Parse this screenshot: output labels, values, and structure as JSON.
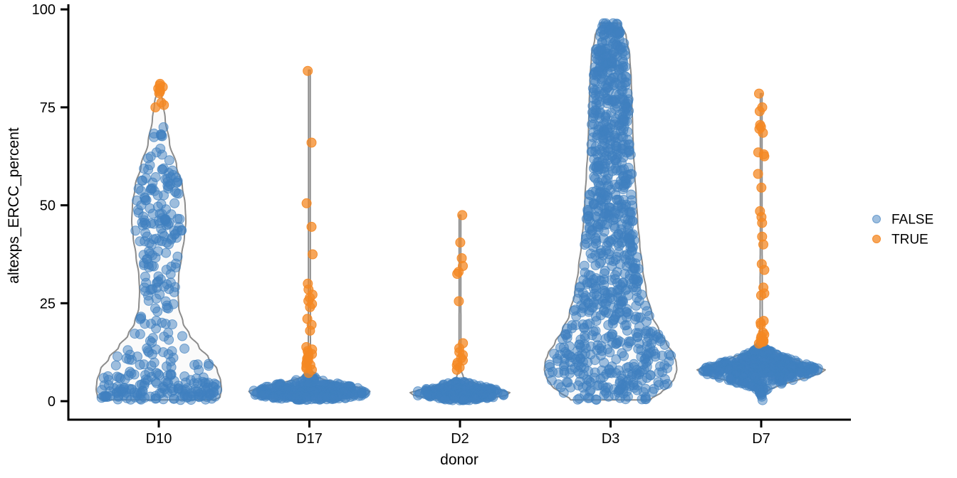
{
  "chart_data": {
    "type": "violin+jitter-scatter",
    "title": "",
    "xlabel": "donor",
    "ylabel": "altexps_ERCC_percent",
    "ylim": [
      0,
      100
    ],
    "y_ticks": [
      0,
      25,
      50,
      75,
      100
    ],
    "categories": [
      "D10",
      "D17",
      "D2",
      "D3",
      "D7"
    ],
    "grid": "off",
    "legend": {
      "position": "right-center",
      "entries": [
        {
          "label": "FALSE",
          "color": "#4080BF",
          "fill_opacity": 0.5
        },
        {
          "label": "TRUE",
          "color": "#F48823",
          "fill_opacity": 0.75
        }
      ]
    },
    "style": {
      "background": "#FFFFFF",
      "violin_fill": "#FAFAFA",
      "violin_stroke": "#8C8C8C",
      "violin_stroke_width": 2,
      "axis_color": "#000000",
      "axis_line_width": 3,
      "point_radius": 6.5,
      "false_color": "#4080BF",
      "false_fill_opacity": 0.5,
      "false_stroke_opacity": 0.68,
      "true_color": "#F48823",
      "true_fill_opacity": 0.75,
      "true_stroke_opacity": 0.92
    },
    "violins": [
      {
        "donor": "D10",
        "flat_bottom": true,
        "outline_profile": [
          [
            79,
            3
          ],
          [
            76,
            6
          ],
          [
            72,
            9
          ],
          [
            66,
            15
          ],
          [
            60,
            25
          ],
          [
            55,
            33
          ],
          [
            50,
            37
          ],
          [
            46,
            38
          ],
          [
            42,
            36
          ],
          [
            37,
            32
          ],
          [
            32,
            28
          ],
          [
            28,
            27
          ],
          [
            24,
            28
          ],
          [
            20,
            34
          ],
          [
            17,
            43
          ],
          [
            14,
            56
          ],
          [
            11,
            70
          ],
          [
            8,
            82
          ],
          [
            5,
            87
          ],
          [
            3,
            88
          ],
          [
            1,
            86
          ],
          [
            0.3,
            78
          ]
        ],
        "true_values": [
          81,
          80.6,
          80.2,
          79.8,
          79.4,
          79,
          78.6,
          76.2,
          75.6,
          75
        ],
        "true_jitter": 8,
        "false_clusters": [
          {
            "n": 14,
            "min": 60,
            "max": 71
          },
          {
            "n": 45,
            "min": 50,
            "max": 60
          },
          {
            "n": 55,
            "min": 40,
            "max": 50
          },
          {
            "n": 30,
            "min": 30,
            "max": 40
          },
          {
            "n": 22,
            "min": 22,
            "max": 30
          },
          {
            "n": 18,
            "min": 15,
            "max": 22
          },
          {
            "n": 30,
            "min": 8,
            "max": 15
          },
          {
            "n": 55,
            "min": 3.5,
            "max": 8
          },
          {
            "n": 95,
            "min": 0.3,
            "max": 3.5
          }
        ]
      },
      {
        "donor": "D17",
        "flat_bottom": true,
        "outline_profile": [
          [
            84.5,
            1.2
          ],
          [
            60,
            1.2
          ],
          [
            30,
            1.3
          ],
          [
            10,
            1.5
          ],
          [
            8,
            3
          ],
          [
            6.5,
            8
          ],
          [
            5.5,
            20
          ],
          [
            4.5,
            45
          ],
          [
            3.5,
            70
          ],
          [
            2.5,
            85
          ],
          [
            1.5,
            80
          ],
          [
            0.8,
            55
          ],
          [
            0.3,
            25
          ]
        ],
        "true_values": [
          84.3,
          66,
          50.5,
          44.5,
          37.5,
          30,
          28.5,
          27.2,
          26.4,
          25.6,
          24.8,
          24,
          21,
          19.5,
          18,
          13.8,
          13.2,
          12.8,
          12.4,
          12,
          11.6,
          11.2,
          10.8,
          10.4,
          10,
          9.6,
          9.2,
          8.8,
          8.4,
          8,
          7.2
        ],
        "true_jitter": 4.5,
        "false_clusters": [
          {
            "n": 25,
            "min": 4.5,
            "max": 6.5
          },
          {
            "n": 90,
            "min": 3,
            "max": 4.5
          },
          {
            "n": 130,
            "min": 1.5,
            "max": 3
          },
          {
            "n": 85,
            "min": 0.3,
            "max": 1.5
          }
        ]
      },
      {
        "donor": "D2",
        "flat_bottom": true,
        "outline_profile": [
          [
            47.5,
            1.2
          ],
          [
            30,
            1.2
          ],
          [
            15,
            1.3
          ],
          [
            8,
            1.5
          ],
          [
            6,
            5
          ],
          [
            5,
            14
          ],
          [
            4,
            32
          ],
          [
            3,
            55
          ],
          [
            2.2,
            70
          ],
          [
            1.5,
            65
          ],
          [
            0.8,
            45
          ],
          [
            0.3,
            18
          ]
        ],
        "true_values": [
          47.5,
          40.5,
          36.5,
          34.5,
          33,
          32.5,
          25.5,
          14.8,
          13.5,
          12.5,
          11.8,
          11,
          10.4,
          9.8,
          9.2,
          8.6,
          8
        ],
        "true_jitter": 4.5,
        "false_clusters": [
          {
            "n": 30,
            "min": 3.5,
            "max": 5
          },
          {
            "n": 90,
            "min": 2,
            "max": 3.5
          },
          {
            "n": 85,
            "min": 0.8,
            "max": 2
          },
          {
            "n": 25,
            "min": 0.2,
            "max": 0.8
          }
        ]
      },
      {
        "donor": "D3",
        "flat_bottom": true,
        "outline_profile": [
          [
            96.5,
            14
          ],
          [
            93,
            22
          ],
          [
            88,
            27
          ],
          [
            82,
            29
          ],
          [
            76,
            30
          ],
          [
            70,
            31
          ],
          [
            64,
            32
          ],
          [
            58,
            34
          ],
          [
            52,
            36
          ],
          [
            46,
            38
          ],
          [
            40,
            41
          ],
          [
            34,
            45
          ],
          [
            28,
            50
          ],
          [
            22,
            58
          ],
          [
            18,
            68
          ],
          [
            15,
            78
          ],
          [
            12,
            88
          ],
          [
            10,
            92
          ],
          [
            8,
            93
          ],
          [
            6,
            90
          ],
          [
            4,
            83
          ],
          [
            2,
            70
          ],
          [
            0.8,
            58
          ],
          [
            0.3,
            56
          ]
        ],
        "true_values": [],
        "true_jitter": 0,
        "false_clusters": [
          {
            "n": 70,
            "min": 88,
            "max": 96.5
          },
          {
            "n": 90,
            "min": 78,
            "max": 88
          },
          {
            "n": 90,
            "min": 68,
            "max": 78
          },
          {
            "n": 85,
            "min": 58,
            "max": 68
          },
          {
            "n": 85,
            "min": 48,
            "max": 58
          },
          {
            "n": 90,
            "min": 38,
            "max": 48
          },
          {
            "n": 85,
            "min": 28,
            "max": 38
          },
          {
            "n": 80,
            "min": 20,
            "max": 28
          },
          {
            "n": 80,
            "min": 13,
            "max": 20
          },
          {
            "n": 90,
            "min": 7,
            "max": 13
          },
          {
            "n": 60,
            "min": 2.5,
            "max": 7
          },
          {
            "n": 25,
            "min": 0.3,
            "max": 2.5
          }
        ]
      },
      {
        "donor": "D7",
        "flat_bottom": false,
        "outline_profile": [
          [
            78.5,
            1.2
          ],
          [
            50,
            1.2
          ],
          [
            25,
            1.5
          ],
          [
            16,
            2
          ],
          [
            14,
            6
          ],
          [
            12.5,
            20
          ],
          [
            11,
            42
          ],
          [
            10,
            58
          ],
          [
            9,
            75
          ],
          [
            8,
            90
          ],
          [
            7,
            82
          ],
          [
            6,
            63
          ],
          [
            5,
            44
          ],
          [
            4,
            26
          ],
          [
            3,
            12
          ],
          [
            2,
            5
          ],
          [
            1,
            1.5
          ]
        ],
        "true_values": [
          78.5,
          75,
          74,
          70.5,
          70,
          69.5,
          68.5,
          63.5,
          63,
          62.5,
          58,
          54.5,
          48.5,
          47,
          45.5,
          42,
          40,
          35,
          33.5,
          29,
          27.5,
          27,
          20.5,
          20,
          19.5,
          17.5,
          17,
          16.5,
          16,
          15.8,
          15.5,
          15.2,
          15,
          14.7
        ],
        "true_jitter": 4.5,
        "false_clusters": [
          {
            "n": 18,
            "min": 13,
            "max": 14.5
          },
          {
            "n": 55,
            "min": 11,
            "max": 13
          },
          {
            "n": 75,
            "min": 9.5,
            "max": 11
          },
          {
            "n": 80,
            "min": 8.5,
            "max": 9.5
          },
          {
            "n": 85,
            "min": 7.5,
            "max": 8.5
          },
          {
            "n": 60,
            "min": 6.5,
            "max": 7.5
          },
          {
            "n": 45,
            "min": 5,
            "max": 6.5
          },
          {
            "n": 25,
            "min": 3.5,
            "max": 5
          },
          {
            "n": 12,
            "min": 2,
            "max": 3.5
          },
          {
            "n": 3,
            "min": 0.5,
            "max": 2
          },
          {
            "n": 1,
            "min": 0.2,
            "max": 0.4
          }
        ]
      }
    ]
  }
}
